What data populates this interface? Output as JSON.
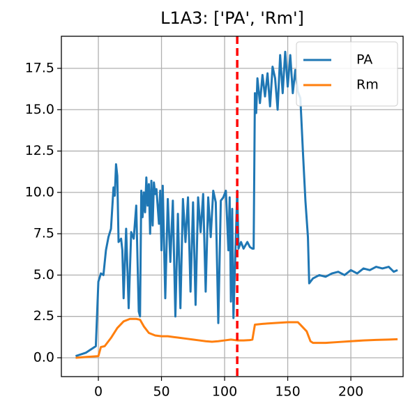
{
  "chart_data": {
    "type": "line",
    "title": "L1A3: ['PA', 'Rm']",
    "xlim": [
      -29.3,
      241.4
    ],
    "ylim": [
      -1.14,
      19.44
    ],
    "xticks": [
      0,
      50,
      100,
      150,
      200
    ],
    "yticks": [
      {
        "value": 0,
        "label": "0.0"
      },
      {
        "value": 2.5,
        "label": "2.5"
      },
      {
        "value": 5,
        "label": "5.0"
      },
      {
        "value": 7.5,
        "label": "7.5"
      },
      {
        "value": 10,
        "label": "10.0"
      },
      {
        "value": 12.5,
        "label": "12.5"
      },
      {
        "value": 15,
        "label": "15.0"
      },
      {
        "value": 17.5,
        "label": "17.5"
      }
    ],
    "grid": true,
    "legend": "upper right",
    "vline": {
      "x": 110,
      "color": "#ff0000"
    },
    "series": [
      {
        "name": "PA",
        "color": "#1f77b4",
        "x": [
          -18,
          -10,
          -2,
          0,
          2,
          4,
          6,
          8,
          10,
          12,
          13,
          14,
          15,
          16,
          18,
          19,
          20,
          22,
          24,
          26,
          28,
          30,
          32,
          33,
          34,
          35,
          36,
          37,
          38,
          39,
          40,
          41,
          42,
          43,
          44,
          45,
          46,
          48,
          49,
          50,
          51,
          53,
          55,
          57,
          59,
          61,
          63,
          65,
          67,
          69,
          71,
          73,
          75,
          77,
          79,
          81,
          83,
          85,
          87,
          89,
          91,
          93,
          95,
          97,
          99,
          101,
          103,
          104,
          105,
          106,
          107,
          108,
          110,
          111,
          113,
          115,
          118,
          120,
          122,
          123,
          124,
          125,
          126,
          128,
          130,
          132,
          134,
          136,
          138,
          140,
          142,
          144,
          146,
          148,
          150,
          152,
          154,
          156,
          158,
          160,
          162,
          164,
          166,
          167,
          170,
          175,
          180,
          185,
          190,
          195,
          200,
          205,
          210,
          215,
          220,
          225,
          230,
          234,
          237
        ],
        "values": [
          0.1,
          0.3,
          0.7,
          4.6,
          5.1,
          5.0,
          6.5,
          7.3,
          7.8,
          10.3,
          9.8,
          11.7,
          11.0,
          7.0,
          7.2,
          6.5,
          3.6,
          7.8,
          3.0,
          7.6,
          7.2,
          9.2,
          2.8,
          2.5,
          10.1,
          8.5,
          10.0,
          8.8,
          10.9,
          9.2,
          10.5,
          7.5,
          10.7,
          8.0,
          10.6,
          9.9,
          10.2,
          8.1,
          10.1,
          6.5,
          10.4,
          3.6,
          9.6,
          5.8,
          9.5,
          2.5,
          8.7,
          3.0,
          9.6,
          7.0,
          9.7,
          4.0,
          9.4,
          3.2,
          9.7,
          7.6,
          9.9,
          4.0,
          9.7,
          7.3,
          10.1,
          9.4,
          2.1,
          9.5,
          9.7,
          10.1,
          6.5,
          9.7,
          3.4,
          9.0,
          2.4,
          5.0,
          10.1,
          6.6,
          7.0,
          6.6,
          7.0,
          6.7,
          6.6,
          6.6,
          16.0,
          14.8,
          16.9,
          15.4,
          17.1,
          15.8,
          17.2,
          15.2,
          17.6,
          16.9,
          15.0,
          18.3,
          16.0,
          18.5,
          16.4,
          18.3,
          16.0,
          17.4,
          16.1,
          15.7,
          12.5,
          9.5,
          7.3,
          4.5,
          4.8,
          5.0,
          4.9,
          5.1,
          5.2,
          5.0,
          5.3,
          5.1,
          5.4,
          5.3,
          5.5,
          5.4,
          5.5,
          5.2,
          5.3
        ]
      },
      {
        "name": "Rm",
        "color": "#ff7f0e",
        "x": [
          -18,
          0,
          2,
          5,
          10,
          15,
          20,
          25,
          30,
          33,
          36,
          40,
          45,
          50,
          55,
          60,
          65,
          70,
          75,
          80,
          85,
          90,
          95,
          100,
          105,
          110,
          115,
          120,
          122,
          124,
          130,
          140,
          150,
          158,
          160,
          165,
          168,
          170,
          180,
          190,
          200,
          210,
          220,
          230,
          237
        ],
        "values": [
          0,
          0.1,
          0.65,
          0.7,
          1.2,
          1.8,
          2.2,
          2.35,
          2.35,
          2.3,
          1.9,
          1.5,
          1.35,
          1.3,
          1.3,
          1.25,
          1.2,
          1.15,
          1.1,
          1.05,
          1.0,
          0.97,
          1.0,
          1.05,
          1.1,
          1.05,
          1.05,
          1.07,
          1.1,
          2.0,
          2.05,
          2.1,
          2.15,
          2.15,
          2.0,
          1.6,
          1.0,
          0.9,
          0.9,
          0.95,
          1.0,
          1.05,
          1.08,
          1.1,
          1.12
        ]
      }
    ]
  }
}
